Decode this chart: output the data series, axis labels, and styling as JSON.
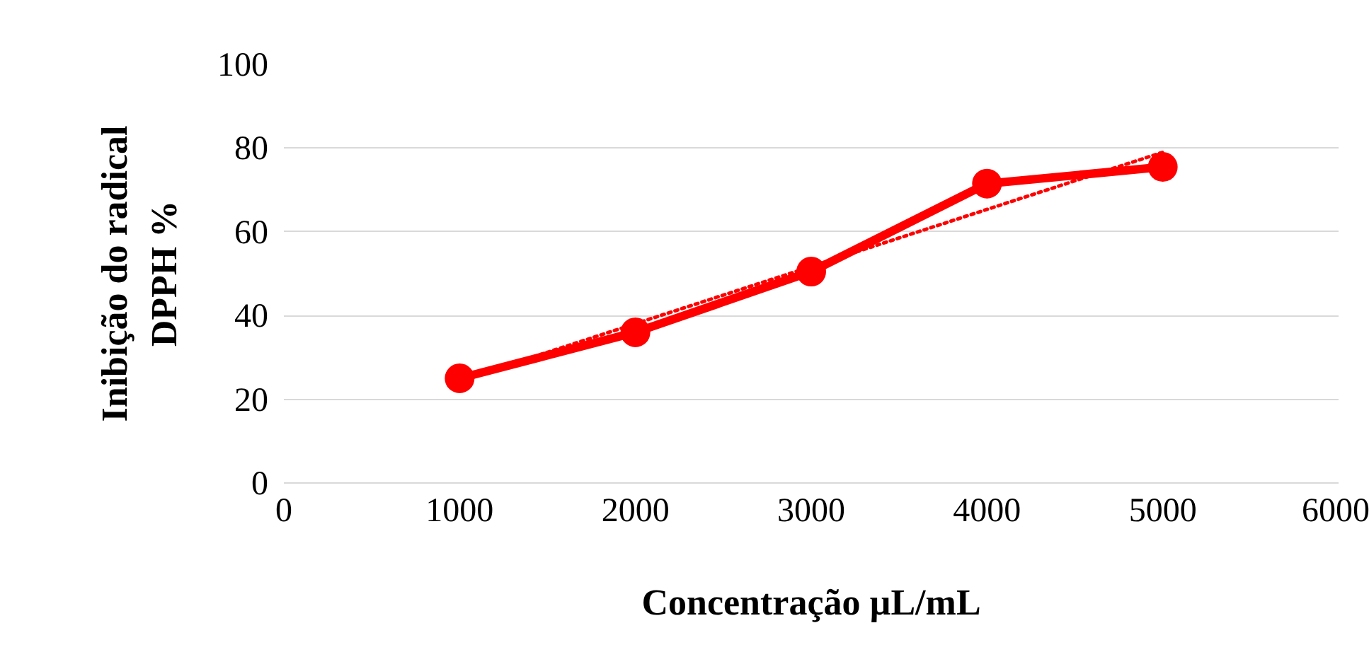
{
  "chart_data": {
    "type": "line",
    "xlabel": "Concentração µL/mL",
    "ylabel": "Inibição do radical\nDPPH %",
    "x": [
      1000,
      2000,
      3000,
      4000,
      5000
    ],
    "series": [
      {
        "color": "#ff0000",
        "values": [
          25,
          36,
          50.5,
          71.5,
          75.5
        ],
        "marker": "circle",
        "line_style": "solid"
      },
      {
        "color": "#ff0000",
        "x": [
          1000,
          5000
        ],
        "values": [
          24.4,
          79.0
        ],
        "marker": "none",
        "line_style": "dotted"
      }
    ],
    "xlim": [
      0,
      6000
    ],
    "xticks": [
      0,
      1000,
      2000,
      3000,
      4000,
      5000,
      6000
    ],
    "ylim": [
      0,
      100
    ],
    "yticks": [
      0,
      20,
      40,
      60,
      80,
      100
    ],
    "grid": "y"
  }
}
